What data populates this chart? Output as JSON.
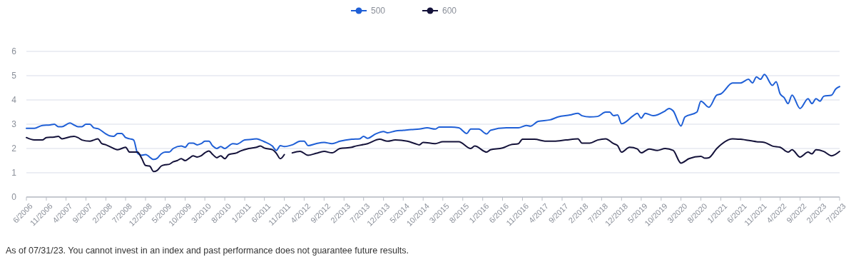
{
  "chart_data": {
    "type": "line",
    "xlim": [
      "2006-06",
      "2023-07"
    ],
    "ylim": [
      0,
      6
    ],
    "yticks": [
      0,
      1,
      2,
      3,
      4,
      5,
      6
    ],
    "grid": "y",
    "legend": "top",
    "xticks": [
      {
        "value": "2006-06",
        "label": "6/2006"
      },
      {
        "value": "2006-11",
        "label": "11/2006"
      },
      {
        "value": "2007-04",
        "label": "4/2007"
      },
      {
        "value": "2007-09",
        "label": "9/2007"
      },
      {
        "value": "2008-02",
        "label": "2/2008"
      },
      {
        "value": "2008-07",
        "label": "7/2008"
      },
      {
        "value": "2008-12",
        "label": "12/2008"
      },
      {
        "value": "2009-05",
        "label": "5/2009"
      },
      {
        "value": "2009-10",
        "label": "10/2009"
      },
      {
        "value": "2010-03",
        "label": "3/2010"
      },
      {
        "value": "2010-08",
        "label": "8/2010"
      },
      {
        "value": "2011-01",
        "label": "1/2011"
      },
      {
        "value": "2011-06",
        "label": "6/2011"
      },
      {
        "value": "2011-11",
        "label": "11/2011"
      },
      {
        "value": "2012-04",
        "label": "4/2012"
      },
      {
        "value": "2012-09",
        "label": "9/2012"
      },
      {
        "value": "2013-02",
        "label": "2/2013"
      },
      {
        "value": "2013-07",
        "label": "7/2013"
      },
      {
        "value": "2013-12",
        "label": "12/2013"
      },
      {
        "value": "2014-05",
        "label": "5/2014"
      },
      {
        "value": "2014-10",
        "label": "10/2014"
      },
      {
        "value": "2015-03",
        "label": "3/2015"
      },
      {
        "value": "2015-08",
        "label": "8/2015"
      },
      {
        "value": "2016-01",
        "label": "1/2016"
      },
      {
        "value": "2016-06",
        "label": "6/2016"
      },
      {
        "value": "2016-11",
        "label": "11/2016"
      },
      {
        "value": "2017-04",
        "label": "4/2017"
      },
      {
        "value": "2017-09",
        "label": "9/2017"
      },
      {
        "value": "2018-02",
        "label": "2/2018"
      },
      {
        "value": "2018-07",
        "label": "7/2018"
      },
      {
        "value": "2018-12",
        "label": "12/2018"
      },
      {
        "value": "2019-05",
        "label": "5/2019"
      },
      {
        "value": "2019-10",
        "label": "10/2019"
      },
      {
        "value": "2020-03",
        "label": "3/2020"
      },
      {
        "value": "2020-08",
        "label": "8/2020"
      },
      {
        "value": "2021-01",
        "label": "1/2021"
      },
      {
        "value": "2021-06",
        "label": "6/2021"
      },
      {
        "value": "2021-11",
        "label": "11/2021"
      },
      {
        "value": "2022-04",
        "label": "4/2022"
      },
      {
        "value": "2022-09",
        "label": "9/2022"
      },
      {
        "value": "2023-02",
        "label": "2/2023"
      },
      {
        "value": "2023-07",
        "label": "7/2023"
      }
    ],
    "series": [
      {
        "name": "500",
        "color": "#1f5fd6",
        "x": [
          "2006-06",
          "2006-08",
          "2006-10",
          "2006-12",
          "2007-01",
          "2007-02",
          "2007-03",
          "2007-05",
          "2007-06",
          "2007-07",
          "2007-08",
          "2007-09",
          "2007-10",
          "2007-11",
          "2007-12",
          "2008-02",
          "2008-03",
          "2008-04",
          "2008-05",
          "2008-06",
          "2008-07",
          "2008-08",
          "2008-09",
          "2008-10",
          "2008-11",
          "2008-12",
          "2009-02",
          "2009-03",
          "2009-04",
          "2009-05",
          "2009-06",
          "2009-07",
          "2009-09",
          "2009-10",
          "2009-11",
          "2009-12",
          "2010-01",
          "2010-02",
          "2010-03",
          "2010-04",
          "2010-05",
          "2010-06",
          "2010-07",
          "2010-08",
          "2010-10",
          "2010-11",
          "2011-01",
          "2011-03",
          "2011-04",
          "2011-05",
          "2011-06",
          "2011-08",
          "2011-09",
          "2011-10",
          "2011-11",
          "2012-01",
          "2012-03",
          "2012-04",
          "2012-05",
          "2012-07",
          "2012-09",
          "2012-11",
          "2013-01",
          "2013-04",
          "2013-06",
          "2013-07",
          "2013-08",
          "2013-10",
          "2013-12",
          "2014-01",
          "2014-03",
          "2014-05",
          "2014-07",
          "2014-09",
          "2014-11",
          "2015-01",
          "2015-02",
          "2015-05",
          "2015-07",
          "2015-09",
          "2015-10",
          "2015-12",
          "2016-02",
          "2016-03",
          "2016-07",
          "2016-10",
          "2016-12",
          "2017-01",
          "2017-03",
          "2017-06",
          "2017-08",
          "2017-11",
          "2018-01",
          "2018-02",
          "2018-04",
          "2018-06",
          "2018-08",
          "2018-09",
          "2018-10",
          "2018-11",
          "2018-12",
          "2019-03",
          "2019-04",
          "2019-05",
          "2019-06",
          "2019-08",
          "2019-11",
          "2019-12",
          "2020-01",
          "2020-03",
          "2020-04",
          "2020-07",
          "2020-08",
          "2020-10",
          "2020-12",
          "2021-01",
          "2021-04",
          "2021-06",
          "2021-08",
          "2021-09",
          "2021-10",
          "2021-11",
          "2021-12",
          "2022-02",
          "2022-03",
          "2022-04",
          "2022-05",
          "2022-06",
          "2022-07",
          "2022-09",
          "2022-11",
          "2022-12",
          "2023-01",
          "2023-02",
          "2023-03",
          "2023-05",
          "2023-06",
          "2023-07"
        ],
        "values": [
          2.83,
          2.83,
          2.95,
          2.97,
          3.0,
          2.9,
          2.9,
          3.05,
          2.97,
          2.9,
          2.9,
          3.0,
          3.0,
          2.85,
          2.82,
          2.6,
          2.52,
          2.5,
          2.62,
          2.62,
          2.45,
          2.4,
          2.35,
          1.8,
          1.72,
          1.75,
          1.55,
          1.6,
          1.78,
          1.85,
          1.85,
          2.0,
          2.1,
          2.05,
          2.22,
          2.22,
          2.15,
          2.2,
          2.3,
          2.3,
          2.1,
          2.0,
          2.08,
          2.0,
          2.2,
          2.18,
          2.35,
          2.38,
          2.4,
          2.35,
          2.28,
          2.1,
          1.92,
          2.12,
          2.08,
          2.15,
          2.3,
          2.3,
          2.12,
          2.2,
          2.25,
          2.2,
          2.3,
          2.38,
          2.4,
          2.5,
          2.42,
          2.6,
          2.7,
          2.65,
          2.72,
          2.75,
          2.78,
          2.8,
          2.85,
          2.8,
          2.88,
          2.88,
          2.85,
          2.62,
          2.8,
          2.8,
          2.6,
          2.75,
          2.85,
          2.85,
          2.95,
          2.92,
          3.12,
          3.18,
          3.3,
          3.38,
          3.45,
          3.35,
          3.3,
          3.32,
          3.5,
          3.5,
          3.35,
          3.38,
          3.02,
          3.35,
          3.45,
          3.25,
          3.45,
          3.35,
          3.55,
          3.65,
          3.55,
          2.93,
          3.3,
          3.5,
          3.95,
          3.7,
          4.2,
          4.25,
          4.7,
          4.7,
          4.85,
          4.7,
          4.95,
          4.85,
          5.05,
          4.6,
          4.75,
          4.25,
          4.1,
          3.85,
          4.2,
          3.65,
          4.05,
          3.85,
          4.05,
          3.95,
          4.15,
          4.2,
          4.45,
          4.55
        ]
      },
      {
        "name": "600",
        "color": "#14123a",
        "x": [
          "2006-06",
          "2006-08",
          "2006-10",
          "2006-11",
          "2007-01",
          "2007-02",
          "2007-03",
          "2007-05",
          "2007-06",
          "2007-07",
          "2007-08",
          "2007-10",
          "2007-11",
          "2007-12",
          "2008-01",
          "2008-02",
          "2008-04",
          "2008-05",
          "2008-07",
          "2008-08",
          "2008-10",
          "2008-11",
          "2008-12",
          "2009-01",
          "2009-02",
          "2009-03",
          "2009-04",
          "2009-05",
          "2009-06",
          "2009-07",
          "2009-08",
          "2009-09",
          "2009-10",
          "2009-11",
          "2009-12",
          "2010-01",
          "2010-02",
          "2010-03",
          "2010-04",
          "2010-05",
          "2010-06",
          "2010-07",
          "2010-08",
          "2010-09",
          "2010-11",
          "2010-12",
          "2011-02",
          "2011-04",
          "2011-05",
          "2011-06",
          "2011-08",
          "2011-09",
          "2011-10",
          "2011-11",
          "2011-12",
          "2012-01",
          "2012-03",
          "2012-05",
          "2012-07",
          "2012-09",
          "2012-11",
          "2013-01",
          "2013-04",
          "2013-05",
          "2013-08",
          "2013-11",
          "2014-01",
          "2014-03",
          "2014-06",
          "2014-08",
          "2014-09",
          "2014-10",
          "2015-01",
          "2015-03",
          "2015-07",
          "2015-10",
          "2015-11",
          "2016-02",
          "2016-03",
          "2016-06",
          "2016-08",
          "2016-10",
          "2016-11",
          "2017-02",
          "2017-05",
          "2017-07",
          "2017-10",
          "2018-01",
          "2018-02",
          "2018-04",
          "2018-06",
          "2018-08",
          "2018-10",
          "2018-11",
          "2018-12",
          "2019-02",
          "2019-04",
          "2019-05",
          "2019-07",
          "2019-09",
          "2019-11",
          "2020-01",
          "2020-03",
          "2020-05",
          "2020-08",
          "2020-09",
          "2020-10",
          "2020-12",
          "2021-04",
          "2021-06",
          "2021-10",
          "2021-12",
          "2022-02",
          "2022-04",
          "2022-06",
          "2022-07",
          "2022-09",
          "2022-11",
          "2022-12",
          "2023-01",
          "2023-03",
          "2023-05",
          "2023-07"
        ],
        "values": [
          2.45,
          2.35,
          2.35,
          2.45,
          2.47,
          2.5,
          2.4,
          2.48,
          2.5,
          2.45,
          2.35,
          2.3,
          2.35,
          2.4,
          2.2,
          2.15,
          2.0,
          1.95,
          2.05,
          1.85,
          1.85,
          1.6,
          1.3,
          1.28,
          1.05,
          1.1,
          1.28,
          1.33,
          1.35,
          1.45,
          1.5,
          1.58,
          1.5,
          1.6,
          1.7,
          1.65,
          1.7,
          1.82,
          1.9,
          1.75,
          1.62,
          1.7,
          1.58,
          1.75,
          1.82,
          1.9,
          2.0,
          2.05,
          2.1,
          2.02,
          1.95,
          1.8,
          1.58,
          1.75,
          null,
          1.82,
          1.88,
          1.72,
          1.8,
          1.88,
          1.82,
          2.0,
          2.05,
          2.1,
          2.2,
          2.38,
          2.3,
          2.35,
          2.3,
          2.2,
          2.15,
          2.25,
          2.2,
          2.28,
          2.28,
          2.0,
          2.1,
          1.85,
          1.95,
          2.02,
          2.15,
          2.2,
          2.38,
          2.38,
          2.3,
          2.3,
          2.35,
          2.4,
          2.22,
          2.22,
          2.35,
          2.4,
          2.2,
          2.12,
          1.85,
          2.05,
          1.98,
          1.82,
          1.98,
          1.92,
          2.0,
          1.92,
          1.4,
          1.58,
          1.68,
          1.6,
          1.62,
          2.0,
          2.4,
          2.38,
          2.28,
          2.25,
          2.1,
          2.05,
          1.85,
          1.95,
          1.65,
          1.85,
          1.78,
          1.95,
          1.88,
          1.7,
          1.88
        ]
      }
    ],
    "annotations": [
      "As of 07/31/23. You cannot invest in an index and past performance does not guarantee future results."
    ]
  }
}
